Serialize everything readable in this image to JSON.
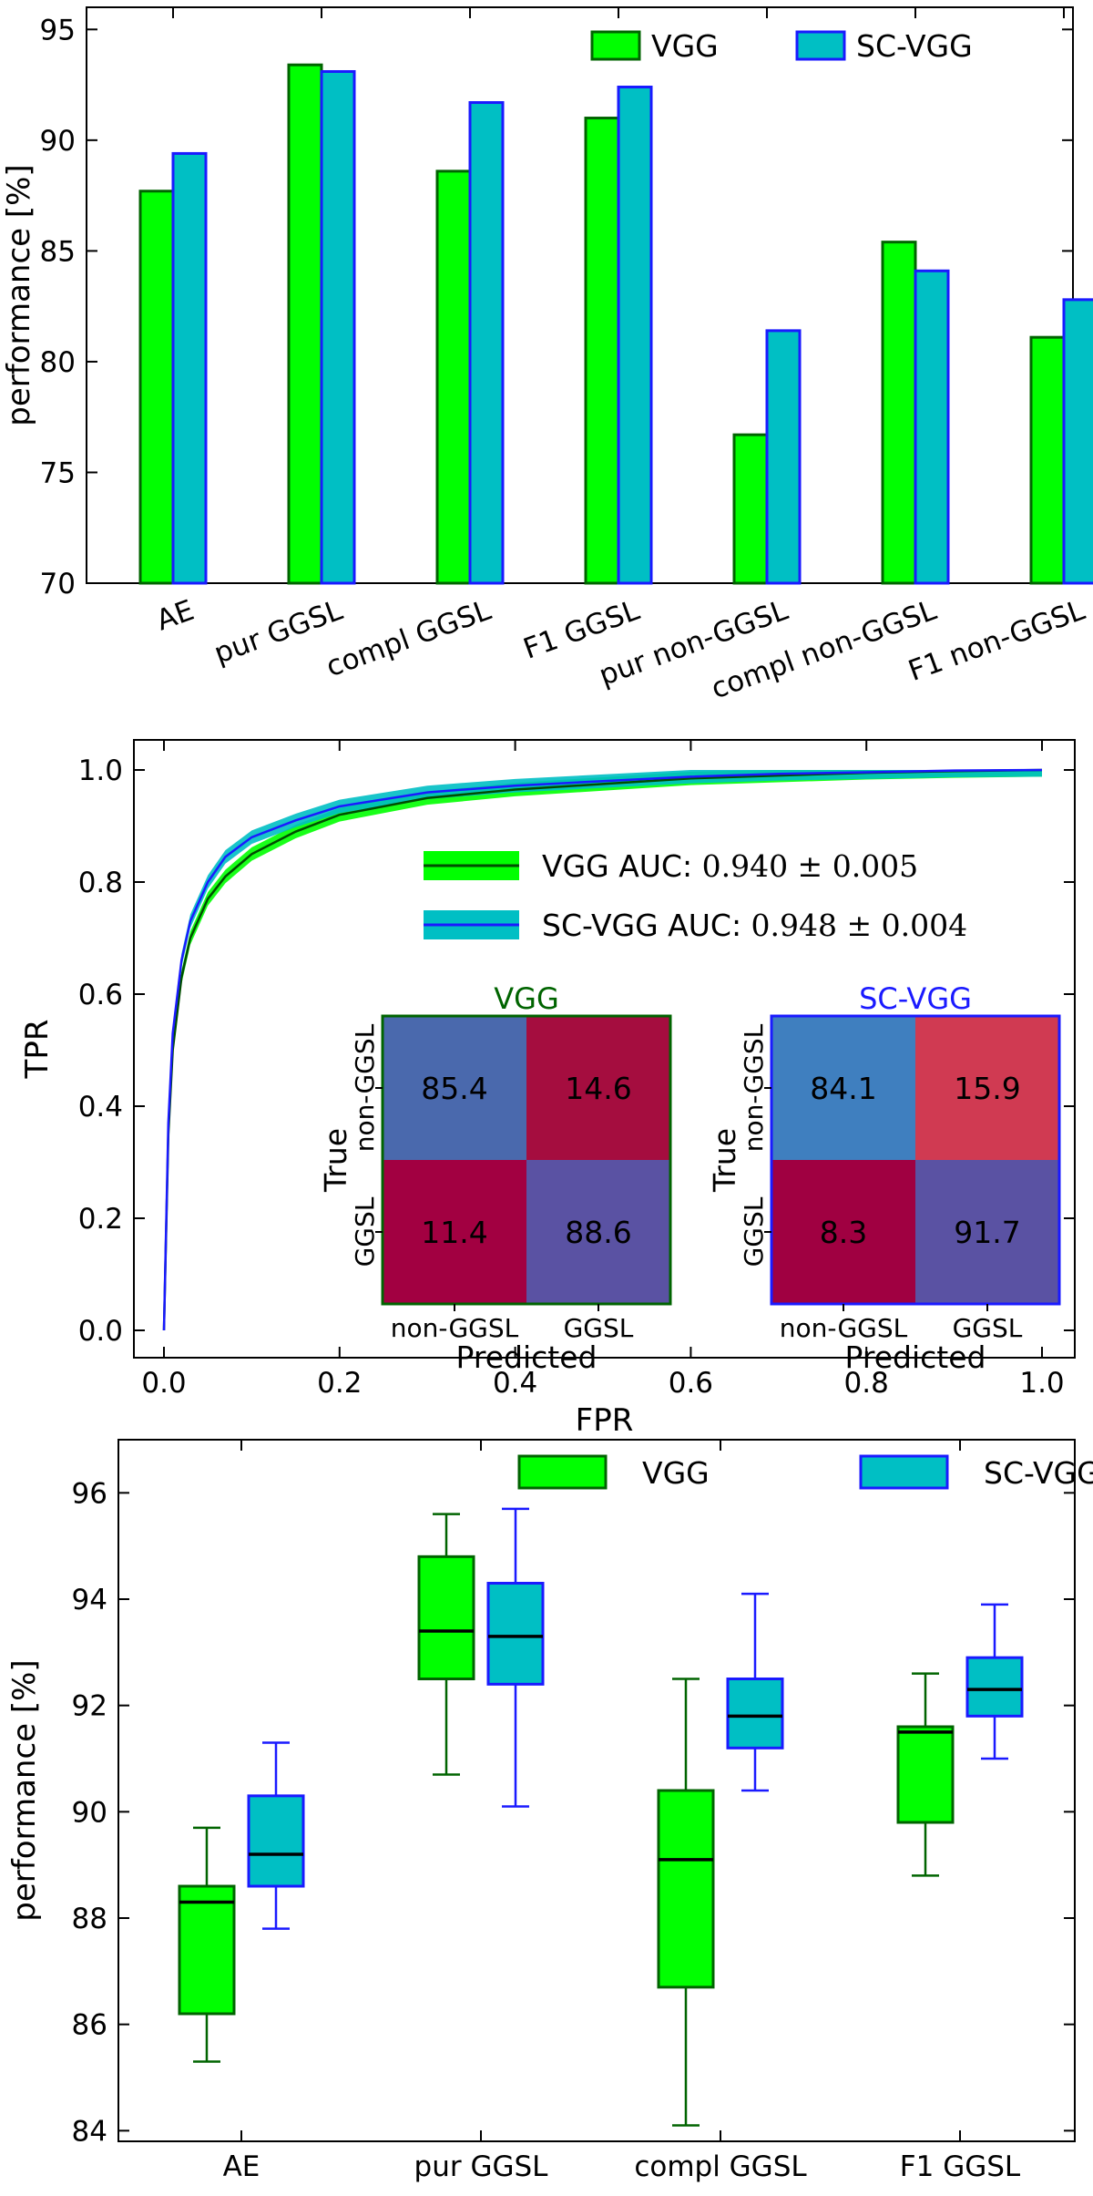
{
  "chart_data": [
    {
      "type": "bar",
      "title": "",
      "xlabel": "",
      "ylabel": "performance [%]",
      "ylim": [
        70,
        96
      ],
      "yticks": [
        70,
        75,
        80,
        85,
        90,
        95
      ],
      "categories": [
        "AE",
        "pur GGSL",
        "compl GGSL",
        "F1 GGSL",
        "pur non-GGSL",
        "compl non-GGSL",
        "F1 non-GGSL"
      ],
      "series": [
        {
          "name": "VGG",
          "fill": "#00ff00",
          "stroke": "#006400",
          "values": [
            87.7,
            93.4,
            88.6,
            91.0,
            76.7,
            85.4,
            81.1
          ]
        },
        {
          "name": "SC-VGG",
          "fill": "#00bfc4",
          "stroke": "#1a1aff",
          "values": [
            89.4,
            93.1,
            91.7,
            92.4,
            81.4,
            84.1,
            82.8
          ]
        }
      ],
      "legend": "top-right"
    },
    {
      "type": "line",
      "title": "",
      "xlabel": "FPR",
      "ylabel": "TPR",
      "xlim": [
        0,
        1
      ],
      "ylim": [
        0,
        1
      ],
      "xticks": [
        "0.0",
        "0.2",
        "0.4",
        "0.6",
        "0.8",
        "1.0"
      ],
      "yticks": [
        "0.0",
        "0.2",
        "0.4",
        "0.6",
        "0.8",
        "1.0"
      ],
      "series": [
        {
          "name": "VGG",
          "auc_label": "VGG AUC:",
          "auc_value": "0.940 ± 0.005",
          "line": "#004d00",
          "band": "#00ff00",
          "x": [
            0,
            0.005,
            0.01,
            0.02,
            0.03,
            0.05,
            0.07,
            0.1,
            0.15,
            0.2,
            0.3,
            0.4,
            0.5,
            0.6,
            0.7,
            0.8,
            0.9,
            1.0
          ],
          "y": [
            0,
            0.35,
            0.5,
            0.63,
            0.7,
            0.77,
            0.81,
            0.85,
            0.89,
            0.92,
            0.95,
            0.965,
            0.975,
            0.985,
            0.99,
            0.995,
            0.998,
            1.0
          ]
        },
        {
          "name": "SC-VGG",
          "auc_label": "SC-VGG AUC:",
          "auc_value": "0.948 ± 0.004",
          "line": "#1a1aff",
          "band": "#00bfc4",
          "x": [
            0,
            0.005,
            0.01,
            0.02,
            0.03,
            0.05,
            0.07,
            0.1,
            0.15,
            0.2,
            0.3,
            0.4,
            0.5,
            0.6,
            0.7,
            0.8,
            0.9,
            1.0
          ],
          "y": [
            0,
            0.37,
            0.53,
            0.66,
            0.73,
            0.8,
            0.845,
            0.88,
            0.91,
            0.935,
            0.96,
            0.972,
            0.98,
            0.988,
            0.993,
            0.996,
            0.999,
            1.0
          ]
        }
      ],
      "confusion_matrices": [
        {
          "title": "VGG",
          "title_color": "#006400",
          "border": "#006400",
          "cells": [
            [
              "85.4",
              "14.6"
            ],
            [
              "11.4",
              "88.6"
            ]
          ],
          "colors": [
            [
              "#4a69ad",
              "#a50d3f"
            ],
            [
              "#a20041",
              "#5a52a3"
            ]
          ],
          "row_labels": [
            "non-GGSL",
            "GGSL"
          ],
          "col_labels": [
            "non-GGSL",
            "GGSL"
          ],
          "ylabel": "True",
          "xlabel": "Predicted"
        },
        {
          "title": "SC-VGG",
          "title_color": "#1a1aff",
          "border": "#1a1aff",
          "cells": [
            [
              "84.1",
              "15.9"
            ],
            [
              "8.3",
              "91.7"
            ]
          ],
          "colors": [
            [
              "#3f7fbf",
              "#d03a52"
            ],
            [
              "#a00041",
              "#5a52a3"
            ]
          ],
          "row_labels": [
            "non-GGSL",
            "GGSL"
          ],
          "col_labels": [
            "non-GGSL",
            "GGSL"
          ],
          "ylabel": "True",
          "xlabel": "Predicted"
        }
      ]
    },
    {
      "type": "box",
      "title": "",
      "xlabel": "",
      "ylabel": "performance [%]",
      "ylim": [
        83.8,
        97
      ],
      "yticks": [
        84,
        86,
        88,
        90,
        92,
        94,
        96
      ],
      "categories": [
        "AE",
        "pur GGSL",
        "compl GGSL",
        "F1 GGSL"
      ],
      "series": [
        {
          "name": "VGG",
          "fill": "#00ff00",
          "stroke": "#006400",
          "boxes": [
            {
              "min": 85.3,
              "q1": 86.2,
              "median": 88.3,
              "q3": 88.6,
              "max": 89.7
            },
            {
              "min": 90.7,
              "q1": 92.5,
              "median": 93.4,
              "q3": 94.8,
              "max": 95.6
            },
            {
              "min": 84.1,
              "q1": 86.7,
              "median": 89.1,
              "q3": 90.4,
              "max": 92.5
            },
            {
              "min": 88.8,
              "q1": 89.8,
              "median": 91.5,
              "q3": 91.6,
              "max": 92.6
            }
          ]
        },
        {
          "name": "SC-VGG",
          "fill": "#00bfc4",
          "stroke": "#1a1aff",
          "boxes": [
            {
              "min": 87.8,
              "q1": 88.6,
              "median": 89.2,
              "q3": 90.3,
              "max": 91.3
            },
            {
              "min": 90.1,
              "q1": 92.4,
              "median": 93.3,
              "q3": 94.3,
              "max": 95.7
            },
            {
              "min": 90.4,
              "q1": 91.2,
              "median": 91.8,
              "q3": 92.5,
              "max": 94.1
            },
            {
              "min": 91.0,
              "q1": 91.8,
              "median": 92.3,
              "q3": 92.9,
              "max": 93.9
            }
          ]
        }
      ],
      "legend": "top"
    }
  ]
}
